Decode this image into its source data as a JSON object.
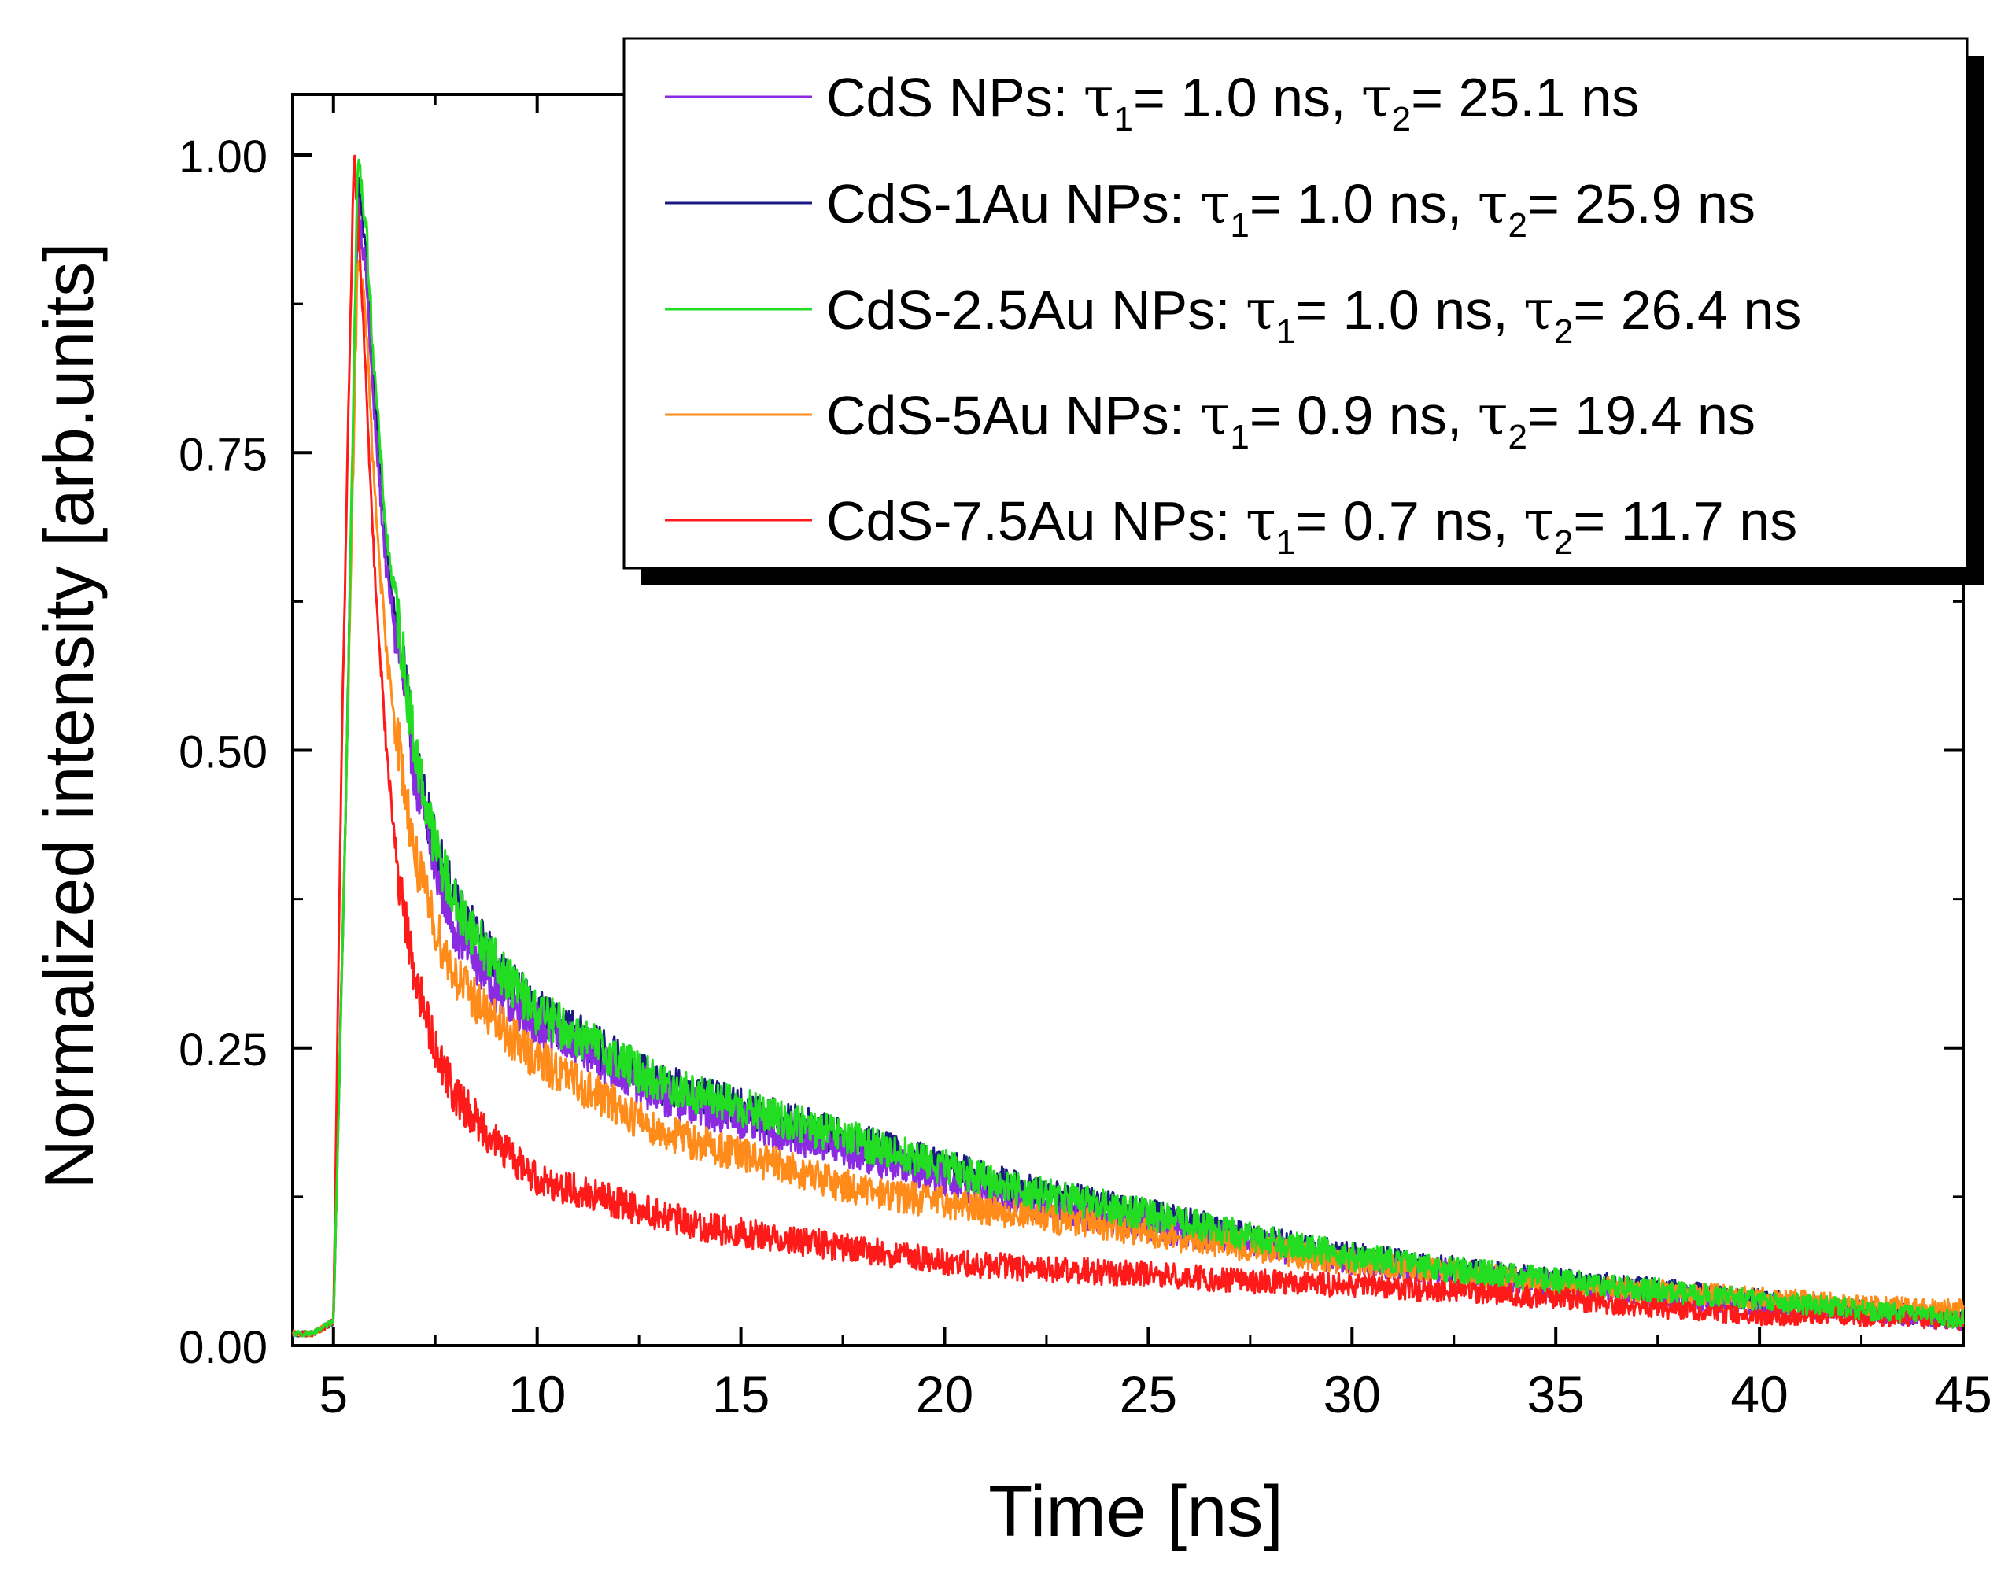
{
  "chart_data": {
    "type": "line",
    "title": "",
    "xlabel": "Time [ns]",
    "ylabel": "Normalized intensity [arb.units]",
    "xlim": [
      4,
      45
    ],
    "ylim": [
      0.0,
      1.03
    ],
    "grid": false,
    "legend_position": "top-right",
    "xticks": [
      5,
      10,
      15,
      20,
      25,
      30,
      35,
      40,
      45
    ],
    "xtick_labels": [
      "5",
      "10",
      "15",
      "20",
      "25",
      "30",
      "35",
      "40",
      "45"
    ],
    "yticks": [
      0.0,
      0.25,
      0.5,
      0.75,
      1.0
    ],
    "ytick_labels": [
      "0.00",
      "0.25",
      "0.50",
      "0.75",
      "1.00"
    ],
    "series": [
      {
        "name": "CdS NPs",
        "legend": {
          "prefix": "CdS NPs: ",
          "tau1_label": "1.0 ns",
          "tau2_label": "25.1 ns"
        },
        "color": "#8a2be2",
        "x": [
          4,
          4.5,
          5.0,
          5.3,
          5.6,
          5.8,
          6.0,
          6.3,
          6.7,
          7,
          7.5,
          8,
          9,
          10,
          11,
          12,
          13,
          14,
          15,
          16,
          18,
          20,
          22,
          25,
          27,
          30,
          33,
          35,
          38,
          40,
          42,
          45
        ],
        "values": [
          0.01,
          0.01,
          0.02,
          0.45,
          0.96,
          0.9,
          0.78,
          0.65,
          0.56,
          0.48,
          0.4,
          0.35,
          0.3,
          0.27,
          0.25,
          0.23,
          0.21,
          0.2,
          0.19,
          0.18,
          0.16,
          0.14,
          0.12,
          0.1,
          0.09,
          0.07,
          0.06,
          0.05,
          0.04,
          0.035,
          0.03,
          0.02
        ]
      },
      {
        "name": "CdS-1Au NPs",
        "legend": {
          "prefix": "CdS-1Au NPs: ",
          "tau1_label": "1.0 ns",
          "tau2_label": "25.9 ns"
        },
        "color": "#1a1a80",
        "x": [
          4,
          4.5,
          5.0,
          5.3,
          5.6,
          5.8,
          6.0,
          6.3,
          6.7,
          7,
          7.5,
          8,
          9,
          10,
          11,
          12,
          13,
          14,
          15,
          16,
          18,
          20,
          22,
          25,
          27,
          30,
          33,
          35,
          38,
          40,
          42,
          45
        ],
        "values": [
          0.01,
          0.01,
          0.02,
          0.45,
          0.98,
          0.92,
          0.8,
          0.67,
          0.57,
          0.49,
          0.42,
          0.37,
          0.32,
          0.28,
          0.26,
          0.24,
          0.22,
          0.21,
          0.2,
          0.19,
          0.17,
          0.15,
          0.13,
          0.11,
          0.095,
          0.075,
          0.062,
          0.055,
          0.045,
          0.038,
          0.032,
          0.022
        ]
      },
      {
        "name": "CdS-2.5Au NPs",
        "legend": {
          "prefix": "CdS-2.5Au NPs: ",
          "tau1_label": "1.0 ns",
          "tau2_label": "26.4 ns"
        },
        "color": "#22dd22",
        "x": [
          4,
          4.5,
          5.0,
          5.3,
          5.6,
          5.8,
          6.0,
          6.3,
          6.7,
          7,
          7.5,
          8,
          9,
          10,
          11,
          12,
          13,
          14,
          15,
          16,
          18,
          20,
          22,
          25,
          27,
          30,
          33,
          35,
          38,
          40,
          42,
          45
        ],
        "values": [
          0.01,
          0.01,
          0.02,
          0.45,
          1.0,
          0.94,
          0.82,
          0.68,
          0.58,
          0.5,
          0.42,
          0.37,
          0.32,
          0.28,
          0.26,
          0.24,
          0.22,
          0.21,
          0.2,
          0.19,
          0.17,
          0.15,
          0.13,
          0.11,
          0.095,
          0.075,
          0.062,
          0.055,
          0.045,
          0.038,
          0.032,
          0.022
        ]
      },
      {
        "name": "CdS-5Au NPs",
        "legend": {
          "prefix": "CdS-5Au NPs: ",
          "tau1_label": "0.9 ns",
          "tau2_label": "19.4 ns"
        },
        "color": "#ff8c1a",
        "x": [
          4,
          4.5,
          5.0,
          5.3,
          5.6,
          5.8,
          6.0,
          6.3,
          6.7,
          7,
          7.5,
          8,
          9,
          10,
          11,
          12,
          13,
          14,
          15,
          16,
          18,
          20,
          22,
          25,
          27,
          30,
          33,
          35,
          38,
          40,
          42,
          45
        ],
        "values": [
          0.01,
          0.01,
          0.02,
          0.45,
          0.92,
          0.86,
          0.72,
          0.58,
          0.48,
          0.41,
          0.35,
          0.31,
          0.27,
          0.24,
          0.22,
          0.2,
          0.18,
          0.17,
          0.16,
          0.15,
          0.13,
          0.12,
          0.11,
          0.095,
          0.085,
          0.07,
          0.06,
          0.05,
          0.045,
          0.04,
          0.035,
          0.03
        ]
      },
      {
        "name": "CdS-7.5Au NPs",
        "legend": {
          "prefix": "CdS-7.5Au NPs: ",
          "tau1_label": "0.7 ns",
          "tau2_label": "11.7 ns"
        },
        "color": "#ff1a1a",
        "x": [
          4,
          4.5,
          5.0,
          5.2,
          5.5,
          5.7,
          6.0,
          6.3,
          6.6,
          7,
          7.5,
          8,
          9,
          10,
          11,
          12,
          13,
          14,
          15,
          16,
          18,
          20,
          22,
          25,
          27,
          30,
          33,
          35,
          38,
          40,
          42,
          45
        ],
        "values": [
          0.01,
          0.01,
          0.02,
          0.5,
          1.0,
          0.88,
          0.66,
          0.5,
          0.39,
          0.31,
          0.25,
          0.21,
          0.17,
          0.14,
          0.13,
          0.12,
          0.11,
          0.1,
          0.095,
          0.09,
          0.08,
          0.07,
          0.065,
          0.06,
          0.055,
          0.05,
          0.045,
          0.04,
          0.03,
          0.025,
          0.025,
          0.02
        ]
      }
    ]
  }
}
